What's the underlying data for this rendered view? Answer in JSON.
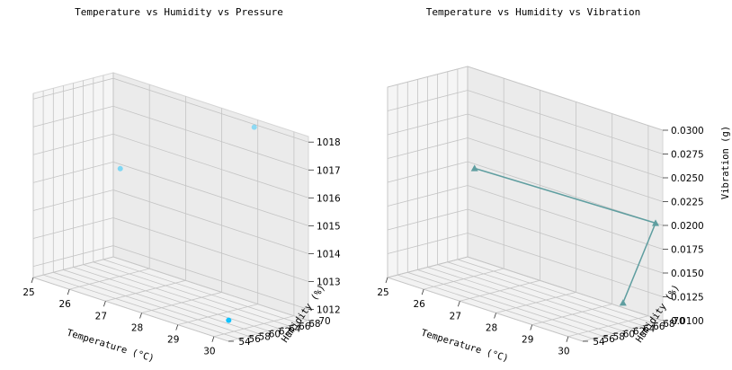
{
  "chart_data": [
    {
      "type": "scatter",
      "title": "Temperature vs Humidity vs Pressure",
      "xlabel": "Temperature (°C)",
      "ylabel": "Humidity (%)",
      "zlabel": "",
      "xlim": [
        25,
        30.4
      ],
      "ylim": [
        54,
        70
      ],
      "zlim": [
        1011.6,
        1018.2
      ],
      "x_ticks": [
        "25",
        "26",
        "27",
        "28",
        "29",
        "30"
      ],
      "y_ticks": [
        "54",
        "56",
        "58",
        "60",
        "62",
        "64",
        "66",
        "68",
        "70"
      ],
      "z_ticks": [
        "1012",
        "1013",
        "1014",
        "1015",
        "1016",
        "1017",
        "1018"
      ],
      "series": [
        {
          "marker": "circle",
          "color": "#00bfff",
          "points": [
            {
              "x": 25.4,
              "y": 68.5,
              "z": 1015.0
            },
            {
              "x": 28.9,
              "y": 70.0,
              "z": 1017.9
            },
            {
              "x": 30.2,
              "y": 55.5,
              "z": 1012.2
            }
          ]
        }
      ]
    },
    {
      "type": "line",
      "title": "Temperature vs Humidity vs Vibration",
      "xlabel": "Temperature (°C)",
      "ylabel": "Humidity (%)",
      "zlabel": "Vibration (g)",
      "xlim": [
        25,
        30.4
      ],
      "ylim": [
        54,
        70
      ],
      "zlim": [
        0.01,
        0.03
      ],
      "x_ticks": [
        "25",
        "26",
        "27",
        "28",
        "29",
        "30"
      ],
      "y_ticks": [
        "54",
        "56",
        "58",
        "60",
        "62",
        "64",
        "66",
        "68",
        "70"
      ],
      "z_ticks": [
        "0.0100",
        "0.0125",
        "0.0150",
        "0.0175",
        "0.0200",
        "0.0225",
        "0.0250",
        "0.0275",
        "0.0300"
      ],
      "series": [
        {
          "marker": "triangle",
          "color": "#5f9ea0",
          "points": [
            {
              "x": 25.4,
              "y": 68.5,
              "z": 0.02
            },
            {
              "x": 30.2,
              "y": 70.0,
              "z": 0.02
            },
            {
              "x": 30.2,
              "y": 63.5,
              "z": 0.0125
            }
          ]
        }
      ]
    }
  ]
}
